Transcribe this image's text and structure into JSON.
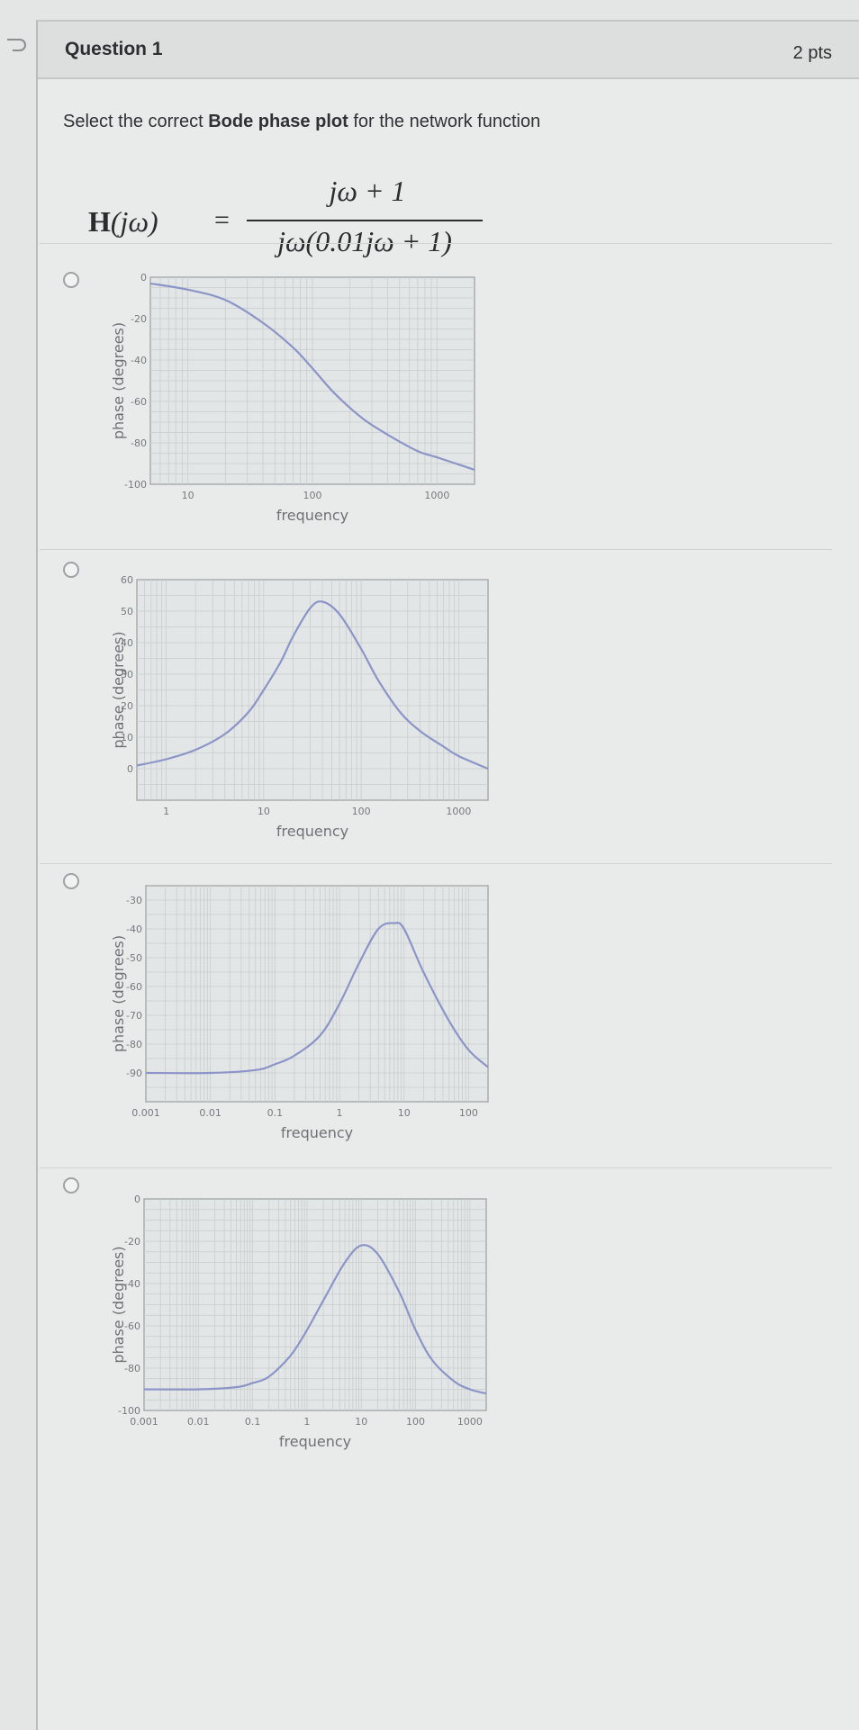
{
  "question": {
    "title": "Question 1",
    "points": "2 pts",
    "prompt_pre": "Select the correct ",
    "prompt_bold": "Bode phase plot",
    "prompt_post": " for the network function",
    "formula": {
      "lhs_bold": "H",
      "lhs_rest": "(jω)",
      "equals": "=",
      "numerator": "jω + 1",
      "denominator": "jω(0.01jω + 1)"
    }
  },
  "chart_data": [
    {
      "type": "line",
      "xlabel": "frequency",
      "ylabel": "phase (degrees)",
      "xscale": "log",
      "xlim": [
        5,
        2000
      ],
      "ylim": [
        -100,
        0
      ],
      "xticks": [
        10,
        100,
        1000
      ],
      "xtick_labels": [
        "10",
        "100",
        "1000"
      ],
      "yticks": [
        0,
        -20,
        -40,
        -60,
        -80,
        -100
      ],
      "ytick_labels": [
        "0",
        "-20",
        "-40",
        "-60",
        "-80",
        "-100"
      ],
      "grid": true,
      "series": [
        {
          "x": [
            5,
            10,
            20,
            40,
            70,
            100,
            150,
            250,
            400,
            700,
            1000,
            2000
          ],
          "y": [
            -3,
            -6,
            -11,
            -22,
            -34,
            -44,
            -56,
            -68,
            -76,
            -84,
            -87,
            -93
          ]
        }
      ]
    },
    {
      "type": "line",
      "xlabel": "frequency",
      "ylabel": "phase (degrees)",
      "xscale": "log",
      "xlim": [
        0.5,
        2000
      ],
      "ylim": [
        -10,
        60
      ],
      "xticks": [
        1,
        10,
        100,
        1000
      ],
      "xtick_labels": [
        "1",
        "10",
        "100",
        "1000"
      ],
      "yticks": [
        60,
        50,
        40,
        30,
        20,
        10,
        0
      ],
      "ytick_labels": [
        "60",
        "50",
        "40",
        "30",
        "20",
        "10",
        "0"
      ],
      "grid": true,
      "series": [
        {
          "x": [
            0.5,
            1,
            2,
            4,
            7,
            10,
            15,
            20,
            30,
            40,
            60,
            100,
            150,
            250,
            400,
            700,
            1000,
            2000
          ],
          "y": [
            1,
            3,
            6,
            11,
            18,
            25,
            34,
            42,
            51,
            53,
            49,
            38,
            28,
            18,
            12,
            7,
            4,
            0
          ]
        }
      ]
    },
    {
      "type": "line",
      "xlabel": "frequency",
      "ylabel": "phase (degrees)",
      "xscale": "log",
      "xlim": [
        0.001,
        200
      ],
      "ylim": [
        -100,
        -25
      ],
      "xticks": [
        0.001,
        0.01,
        0.1,
        1,
        10,
        100
      ],
      "xtick_labels": [
        "0.001",
        "0.01",
        "0.1",
        "1",
        "10",
        "100"
      ],
      "yticks": [
        -30,
        -40,
        -50,
        -60,
        -70,
        -80,
        -90
      ],
      "ytick_labels": [
        "-30",
        "-40",
        "-50",
        "-60",
        "-70",
        "-80",
        "-90"
      ],
      "grid": true,
      "series": [
        {
          "x": [
            0.001,
            0.01,
            0.05,
            0.1,
            0.2,
            0.5,
            1,
            2,
            4,
            7,
            10,
            20,
            50,
            100,
            200
          ],
          "y": [
            -90,
            -90,
            -89,
            -87,
            -84,
            -77,
            -66,
            -52,
            -40,
            -38,
            -40,
            -55,
            -72,
            -82,
            -88
          ]
        }
      ]
    },
    {
      "type": "line",
      "xlabel": "frequency",
      "ylabel": "phase (degrees)",
      "xscale": "log",
      "xlim": [
        0.001,
        2000
      ],
      "ylim": [
        -100,
        0
      ],
      "xticks": [
        0.001,
        0.01,
        0.1,
        1,
        10,
        100,
        1000
      ],
      "xtick_labels": [
        "0.001",
        "0.01",
        "0.1",
        "1",
        "10",
        "100",
        "1000"
      ],
      "yticks": [
        0,
        -20,
        -40,
        -60,
        -80,
        -100
      ],
      "ytick_labels": [
        "0",
        "-20",
        "-40",
        "-60",
        "-80",
        "-100"
      ],
      "grid": true,
      "series": [
        {
          "x": [
            0.001,
            0.01,
            0.05,
            0.1,
            0.2,
            0.5,
            1,
            2,
            5,
            10,
            20,
            50,
            100,
            200,
            500,
            1000,
            2000
          ],
          "y": [
            -90,
            -90,
            -89,
            -87,
            -84,
            -74,
            -62,
            -48,
            -30,
            -22,
            -26,
            -44,
            -62,
            -76,
            -86,
            -90,
            -92
          ]
        }
      ]
    }
  ]
}
